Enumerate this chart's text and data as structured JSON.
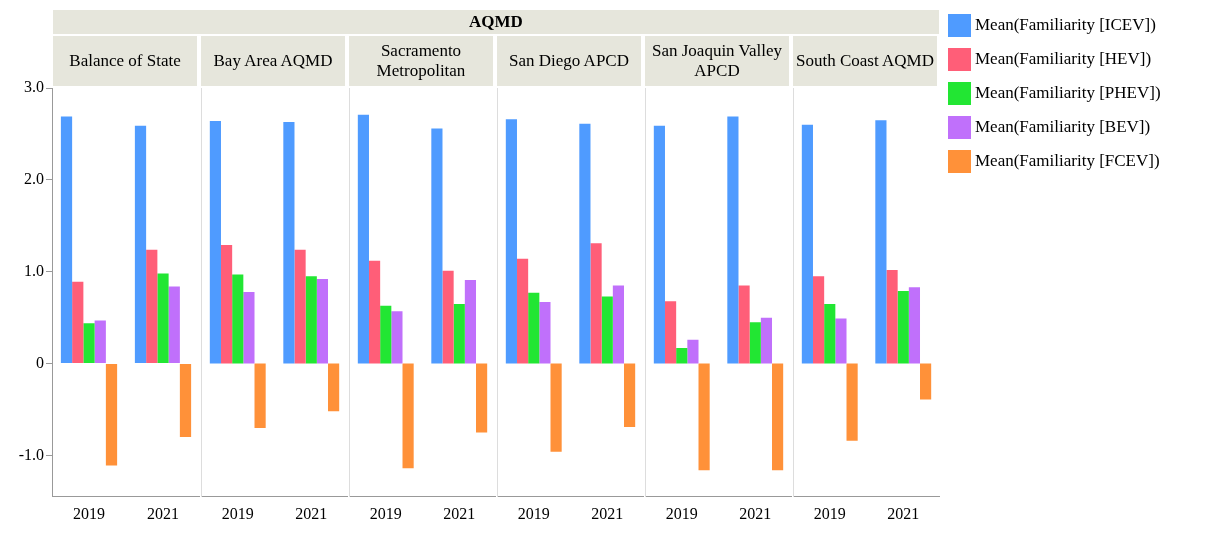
{
  "chart_data": [
    {
      "type": "other",
      "title": "AQMD"
    },
    {
      "type": "bar",
      "title": "Balance of State",
      "categories": [
        "2019",
        "2021"
      ],
      "ylim": [
        -1.45,
        3.0
      ],
      "yticks": [
        {
          "value": -1,
          "label": "-1.0"
        },
        {
          "value": 0,
          "label": "0"
        },
        {
          "value": 1,
          "label": "1.0"
        },
        {
          "value": 2,
          "label": "2.0"
        },
        {
          "value": 3,
          "label": "3.0"
        }
      ],
      "series": [
        {
          "color": "#4f9bff",
          "values": [
            2.69,
            2.59
          ]
        },
        {
          "color": "#ff5e78",
          "values": [
            0.89,
            1.24
          ]
        },
        {
          "color": "#22e633",
          "values": [
            0.44,
            0.98
          ]
        },
        {
          "color": "#c070fb",
          "values": [
            0.47,
            0.84
          ]
        },
        {
          "color": "#ff9139",
          "values": [
            -1.11,
            -0.8
          ]
        }
      ]
    },
    {
      "type": "bar",
      "title": "Bay Area AQMD",
      "categories": [
        "2019",
        "2021"
      ],
      "ylim": [
        -1.45,
        3.0
      ],
      "tick_labels": "x",
      "series": [
        {
          "color": "#4f9bff",
          "values": [
            2.64,
            2.63
          ]
        },
        {
          "color": "#ff5e78",
          "values": [
            1.29,
            1.24
          ]
        },
        {
          "color": "#22e633",
          "values": [
            0.97,
            0.95
          ]
        },
        {
          "color": "#c070fb",
          "values": [
            0.78,
            0.92
          ]
        },
        {
          "color": "#ff9139",
          "values": [
            -0.7,
            -0.52
          ]
        }
      ]
    },
    {
      "type": "bar",
      "title": "Sacramento Metropolitan",
      "categories": [
        "2019",
        "2021"
      ],
      "ylim": [
        -1.45,
        3.0
      ],
      "tick_labels": "x",
      "series": [
        {
          "color": "#4f9bff",
          "values": [
            2.71,
            2.56
          ]
        },
        {
          "color": "#ff5e78",
          "values": [
            1.12,
            1.01
          ]
        },
        {
          "color": "#22e633",
          "values": [
            0.63,
            0.65
          ]
        },
        {
          "color": "#c070fb",
          "values": [
            0.57,
            0.91
          ]
        },
        {
          "color": "#ff9139",
          "values": [
            -1.14,
            -0.75
          ]
        }
      ]
    },
    {
      "type": "bar",
      "title": "San Diego APCD",
      "categories": [
        "2019",
        "2021"
      ],
      "ylim": [
        -1.45,
        3.0
      ],
      "tick_labels": "x",
      "series": [
        {
          "color": "#4f9bff",
          "values": [
            2.66,
            2.61
          ]
        },
        {
          "color": "#ff5e78",
          "values": [
            1.14,
            1.31
          ]
        },
        {
          "color": "#22e633",
          "values": [
            0.77,
            0.73
          ]
        },
        {
          "color": "#c070fb",
          "values": [
            0.67,
            0.85
          ]
        },
        {
          "color": "#ff9139",
          "values": [
            -0.96,
            -0.69
          ]
        }
      ]
    },
    {
      "type": "bar",
      "title": "San Joaquin Valley APCD",
      "categories": [
        "2019",
        "2021"
      ],
      "ylim": [
        -1.45,
        3.0
      ],
      "tick_labels": "x",
      "series": [
        {
          "color": "#4f9bff",
          "values": [
            2.59,
            2.69
          ]
        },
        {
          "color": "#ff5e78",
          "values": [
            0.68,
            0.85
          ]
        },
        {
          "color": "#22e633",
          "values": [
            0.17,
            0.45
          ]
        },
        {
          "color": "#c070fb",
          "values": [
            0.26,
            0.5
          ]
        },
        {
          "color": "#ff9139",
          "values": [
            -1.16,
            -1.16
          ]
        }
      ]
    },
    {
      "type": "bar",
      "title": "South Coast AQMD",
      "categories": [
        "2019",
        "2021"
      ],
      "ylim": [
        -1.45,
        3.0
      ],
      "tick_labels": "x",
      "legend": "right",
      "series": [
        {
          "name": "Mean(Familiarity [ICEV])",
          "color": "#4f9bff",
          "values": [
            2.6,
            2.65
          ]
        },
        {
          "name": "Mean(Familiarity [HEV])",
          "color": "#ff5e78",
          "values": [
            0.95,
            1.02
          ]
        },
        {
          "name": "Mean(Familiarity [PHEV])",
          "color": "#22e633",
          "values": [
            0.65,
            0.79
          ]
        },
        {
          "name": "Mean(Familiarity [BEV])",
          "color": "#c070fb",
          "values": [
            0.49,
            0.83
          ]
        },
        {
          "name": "Mean(Familiarity [FCEV])",
          "color": "#ff9139",
          "values": [
            -0.84,
            -0.39
          ]
        }
      ]
    }
  ]
}
